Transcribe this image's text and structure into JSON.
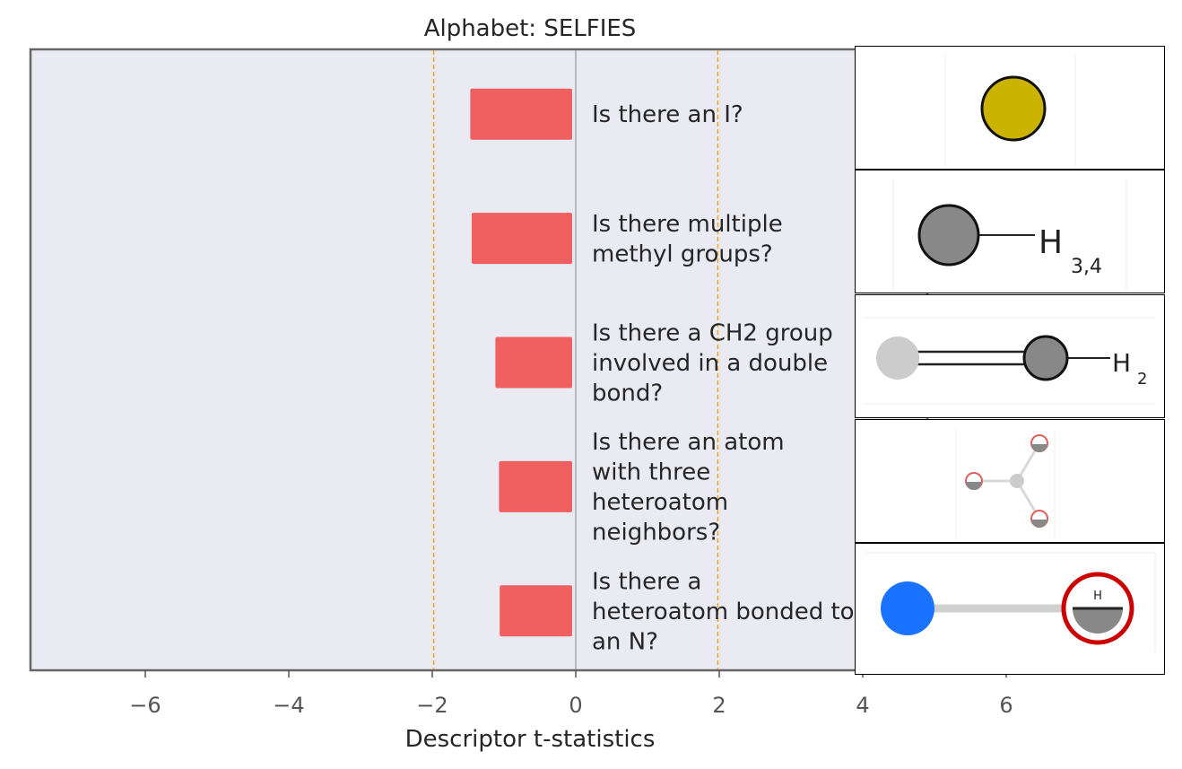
{
  "chart_data": {
    "type": "bar",
    "orientation": "horizontal",
    "title": "Alphabet: SELFIES",
    "xlabel": "Descriptor t-statistics",
    "ylabel": "",
    "xlim": [
      -7.6,
      4.9
    ],
    "xticks": [
      -6,
      -4,
      -2,
      0,
      2,
      4,
      6
    ],
    "xtick_labels": [
      "−6",
      "−4",
      "−2",
      "0",
      "2",
      "4",
      "6"
    ],
    "significance_lines": [
      -1.98,
      1.98
    ],
    "grid": false,
    "bar_color": "#f06060",
    "significance_color": "#f5a623",
    "background_color": "#eaeaf2",
    "categories": [
      "Is there an I?",
      "Is there multiple methyl groups?",
      "Is there a CH2 group involved in a double bond?",
      "Is there an atom with three heteroatom neighbors?",
      "Is there a heteroatom bonded to an N?"
    ],
    "category_lines": [
      [
        "Is there an I?"
      ],
      [
        "Is there multiple",
        "methyl groups?"
      ],
      [
        "Is there a CH2 group",
        "involved in a double",
        "bond?"
      ],
      [
        "Is there an atom",
        "with three",
        "heteroatom",
        "neighbors?"
      ],
      [
        "Is there a",
        "heteroatom bonded to",
        "an N?"
      ]
    ],
    "values": [
      -1.47,
      -1.45,
      -1.12,
      -1.07,
      -1.06
    ]
  },
  "molecules": [
    {
      "label": "iodine-atom",
      "atom_color": "#ccb300"
    },
    {
      "label": "methyl-group",
      "text": "H",
      "sub": "3,4"
    },
    {
      "label": "ch2-double-bond",
      "text": "H",
      "sub": "2"
    },
    {
      "label": "three-heteroatom-neighbors"
    },
    {
      "label": "heteroatom-bonded-to-n",
      "atom_color": "#1a73ff",
      "text": "H"
    }
  ]
}
